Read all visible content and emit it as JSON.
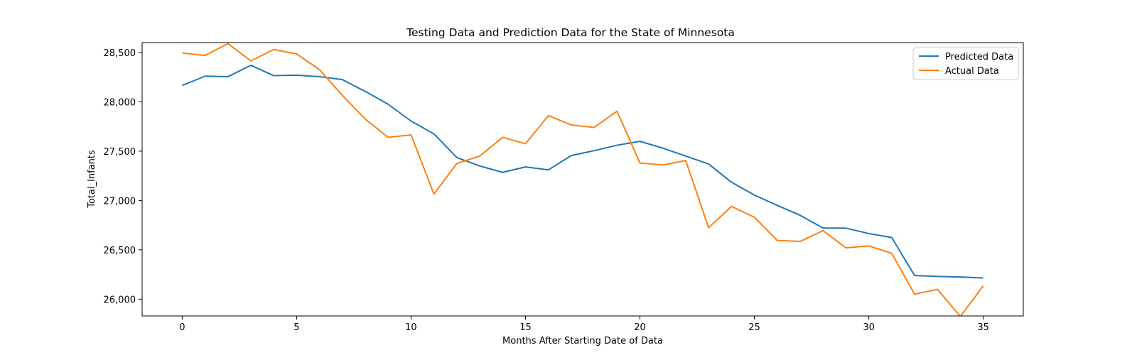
{
  "chart_data": {
    "type": "line",
    "title": "Testing Data and Prediction Data for the State of Minnesota",
    "xlabel": "Months After Starting Date of Data",
    "ylabel": "Total_Infants",
    "xlim": [
      -1.75,
      36.75
    ],
    "ylim": [
      25830,
      28600
    ],
    "x_ticks": [
      0,
      5,
      10,
      15,
      20,
      25,
      30,
      35
    ],
    "y_ticks": [
      26000,
      26500,
      27000,
      27500,
      28000,
      28500
    ],
    "y_tick_labels": [
      "26,000",
      "26,500",
      "27,000",
      "27,500",
      "28,000",
      "28,500"
    ],
    "grid": false,
    "legend_position": "upper right",
    "x": [
      0,
      1,
      2,
      3,
      4,
      5,
      6,
      7,
      8,
      9,
      10,
      11,
      12,
      13,
      14,
      15,
      16,
      17,
      18,
      19,
      20,
      21,
      22,
      23,
      24,
      25,
      26,
      27,
      28,
      29,
      30,
      31,
      32,
      33,
      34,
      35
    ],
    "series": [
      {
        "name": "Predicted Data",
        "color": "#1f77b4",
        "values": [
          28165,
          28260,
          28255,
          28370,
          28265,
          28270,
          28255,
          28225,
          28105,
          27975,
          27805,
          27675,
          27435,
          27350,
          27285,
          27340,
          27310,
          27455,
          27505,
          27560,
          27600,
          27530,
          27450,
          27370,
          27185,
          27055,
          26950,
          26850,
          26720,
          26720,
          26665,
          26625,
          26240,
          26230,
          26225,
          26215
        ]
      },
      {
        "name": "Actual Data",
        "color": "#ff7f0e",
        "values": [
          28495,
          28470,
          28590,
          28415,
          28530,
          28485,
          28325,
          28065,
          27825,
          27640,
          27665,
          27065,
          27375,
          27450,
          27640,
          27575,
          27860,
          27765,
          27740,
          27905,
          27380,
          27360,
          27405,
          26725,
          26940,
          26830,
          26595,
          26585,
          26695,
          26520,
          26540,
          26465,
          26050,
          26100,
          25825,
          26135
        ]
      }
    ]
  }
}
